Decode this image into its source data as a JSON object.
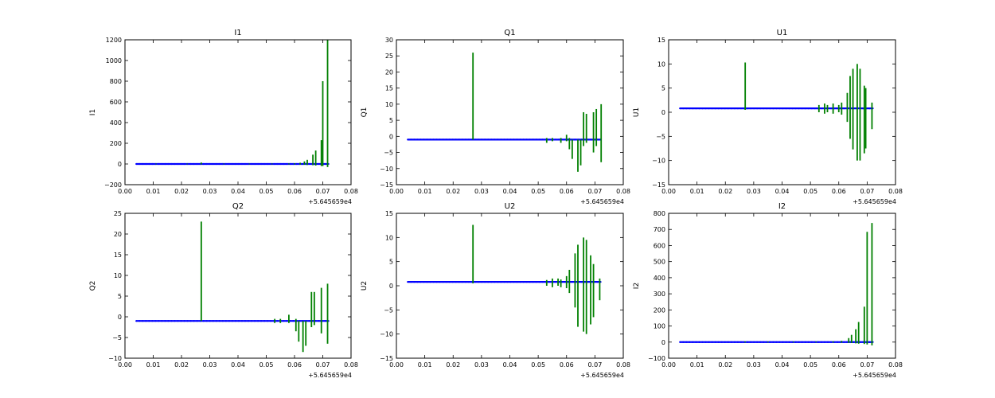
{
  "chart_data": [
    {
      "type": "line",
      "title": "I1",
      "xlabel": "",
      "ylabel": "I1",
      "x_offset_label": "+5.645659e4",
      "xlim": [
        0.0,
        0.08
      ],
      "ylim": [
        -200,
        1200
      ],
      "xticks": [
        "0.00",
        "0.01",
        "0.02",
        "0.03",
        "0.04",
        "0.05",
        "0.06",
        "0.07",
        "0.08"
      ],
      "yticks": [
        "−200",
        "0",
        "200",
        "400",
        "600",
        "800",
        "1000",
        "1200"
      ],
      "baseline": 0,
      "x_start": 0.004,
      "x_end": 0.072,
      "spikes": [
        {
          "x": 0.011,
          "min": -3,
          "max": 3
        },
        {
          "x": 0.022,
          "min": -3,
          "max": 3
        },
        {
          "x": 0.027,
          "min": -4,
          "max": 14
        },
        {
          "x": 0.035,
          "min": -3,
          "max": 3
        },
        {
          "x": 0.044,
          "min": -3,
          "max": 3
        },
        {
          "x": 0.052,
          "min": -3,
          "max": 4
        },
        {
          "x": 0.058,
          "min": -4,
          "max": 5
        },
        {
          "x": 0.06,
          "min": -4,
          "max": 7
        },
        {
          "x": 0.062,
          "min": -6,
          "max": 12
        },
        {
          "x": 0.0635,
          "min": -8,
          "max": 25
        },
        {
          "x": 0.0645,
          "min": -10,
          "max": 40
        },
        {
          "x": 0.0665,
          "min": -12,
          "max": 90
        },
        {
          "x": 0.0675,
          "min": -15,
          "max": 130
        },
        {
          "x": 0.0695,
          "min": -20,
          "max": 230
        },
        {
          "x": 0.07,
          "min": -20,
          "max": 800
        },
        {
          "x": 0.0717,
          "min": -30,
          "max": 1200
        }
      ],
      "colors": {
        "spike": "#008000",
        "baseline": "#0000ff"
      }
    },
    {
      "type": "line",
      "title": "Q1",
      "xlabel": "",
      "ylabel": "Q1",
      "x_offset_label": "+5.645659e4",
      "xlim": [
        0.0,
        0.08
      ],
      "ylim": [
        -15,
        30
      ],
      "xticks": [
        "0.00",
        "0.01",
        "0.02",
        "0.03",
        "0.04",
        "0.05",
        "0.06",
        "0.07",
        "0.08"
      ],
      "yticks": [
        "−15",
        "−10",
        "−5",
        "0",
        "5",
        "10",
        "15",
        "20",
        "25",
        "30"
      ],
      "baseline": -1,
      "x_start": 0.004,
      "x_end": 0.072,
      "spikes": [
        {
          "x": 0.027,
          "min": -1,
          "max": 26
        },
        {
          "x": 0.053,
          "min": -2,
          "max": -0.5
        },
        {
          "x": 0.055,
          "min": -1.5,
          "max": -0.5
        },
        {
          "x": 0.058,
          "min": -2,
          "max": -0.5
        },
        {
          "x": 0.06,
          "min": -1.5,
          "max": 0.5
        },
        {
          "x": 0.061,
          "min": -4,
          "max": -0.5
        },
        {
          "x": 0.062,
          "min": -7,
          "max": -1
        },
        {
          "x": 0.064,
          "min": -11,
          "max": -1
        },
        {
          "x": 0.065,
          "min": -9,
          "max": -1
        },
        {
          "x": 0.066,
          "min": -3,
          "max": 7.5
        },
        {
          "x": 0.067,
          "min": -2,
          "max": 7
        },
        {
          "x": 0.0695,
          "min": -5,
          "max": 7.5
        },
        {
          "x": 0.0705,
          "min": -3,
          "max": 8.5
        },
        {
          "x": 0.0722,
          "min": -8,
          "max": 10
        }
      ],
      "colors": {
        "spike": "#008000",
        "baseline": "#0000ff"
      }
    },
    {
      "type": "line",
      "title": "U1",
      "xlabel": "",
      "ylabel": "U1",
      "x_offset_label": "+5.645659e4",
      "xlim": [
        0.0,
        0.08
      ],
      "ylim": [
        -15,
        15
      ],
      "xticks": [
        "0.00",
        "0.01",
        "0.02",
        "0.03",
        "0.04",
        "0.05",
        "0.06",
        "0.07",
        "0.08"
      ],
      "yticks": [
        "−15",
        "−10",
        "−5",
        "0",
        "5",
        "10",
        "15"
      ],
      "baseline": 0.8,
      "x_start": 0.004,
      "x_end": 0.072,
      "spikes": [
        {
          "x": 0.027,
          "min": 0.5,
          "max": 10.3
        },
        {
          "x": 0.053,
          "min": 0,
          "max": 1.5
        },
        {
          "x": 0.055,
          "min": -0.3,
          "max": 1.8
        },
        {
          "x": 0.056,
          "min": 0,
          "max": 1.5
        },
        {
          "x": 0.058,
          "min": -0.3,
          "max": 1.8
        },
        {
          "x": 0.06,
          "min": 0,
          "max": 1.5
        },
        {
          "x": 0.061,
          "min": -0.5,
          "max": 2
        },
        {
          "x": 0.063,
          "min": -2,
          "max": 4
        },
        {
          "x": 0.064,
          "min": -5.5,
          "max": 7.5
        },
        {
          "x": 0.065,
          "min": -7.7,
          "max": 9
        },
        {
          "x": 0.0665,
          "min": -10,
          "max": 10
        },
        {
          "x": 0.0675,
          "min": -10,
          "max": 9
        },
        {
          "x": 0.069,
          "min": -8.5,
          "max": 5.5
        },
        {
          "x": 0.0695,
          "min": -7.5,
          "max": 5
        },
        {
          "x": 0.0717,
          "min": -3.5,
          "max": 2
        }
      ],
      "colors": {
        "spike": "#008000",
        "baseline": "#0000ff"
      }
    },
    {
      "type": "line",
      "title": "Q2",
      "xlabel": "",
      "ylabel": "Q2",
      "x_offset_label": "+5.645659e4",
      "xlim": [
        0.0,
        0.08
      ],
      "ylim": [
        -10,
        25
      ],
      "xticks": [
        "0.00",
        "0.01",
        "0.02",
        "0.03",
        "0.04",
        "0.05",
        "0.06",
        "0.07",
        "0.08"
      ],
      "yticks": [
        "−10",
        "−5",
        "0",
        "5",
        "10",
        "15",
        "20",
        "25"
      ],
      "baseline": -1,
      "x_start": 0.004,
      "x_end": 0.072,
      "spikes": [
        {
          "x": 0.027,
          "min": -1,
          "max": 23
        },
        {
          "x": 0.053,
          "min": -1.5,
          "max": -0.5
        },
        {
          "x": 0.055,
          "min": -1.5,
          "max": -0.5
        },
        {
          "x": 0.058,
          "min": -1.5,
          "max": 0.5
        },
        {
          "x": 0.0605,
          "min": -3.5,
          "max": -0.5
        },
        {
          "x": 0.0615,
          "min": -6,
          "max": -1
        },
        {
          "x": 0.063,
          "min": -8.5,
          "max": -1
        },
        {
          "x": 0.064,
          "min": -7,
          "max": -1
        },
        {
          "x": 0.066,
          "min": -2.5,
          "max": 6
        },
        {
          "x": 0.067,
          "min": -2,
          "max": 6
        },
        {
          "x": 0.0695,
          "min": -4,
          "max": 7
        },
        {
          "x": 0.0717,
          "min": -6.5,
          "max": 8
        }
      ],
      "colors": {
        "spike": "#008000",
        "baseline": "#0000ff"
      }
    },
    {
      "type": "line",
      "title": "U2",
      "xlabel": "",
      "ylabel": "U2",
      "x_offset_label": "+5.645659e4",
      "xlim": [
        0.0,
        0.08
      ],
      "ylim": [
        -15,
        15
      ],
      "xticks": [
        "0.00",
        "0.01",
        "0.02",
        "0.03",
        "0.04",
        "0.05",
        "0.06",
        "0.07",
        "0.08"
      ],
      "yticks": [
        "−15",
        "−10",
        "−5",
        "0",
        "5",
        "10",
        "15"
      ],
      "baseline": 0.8,
      "x_start": 0.004,
      "x_end": 0.072,
      "spikes": [
        {
          "x": 0.027,
          "min": 0.5,
          "max": 12.6
        },
        {
          "x": 0.053,
          "min": 0,
          "max": 1.2
        },
        {
          "x": 0.055,
          "min": -0.3,
          "max": 1.5
        },
        {
          "x": 0.057,
          "min": 0,
          "max": 1.5
        },
        {
          "x": 0.058,
          "min": -0.3,
          "max": 1.3
        },
        {
          "x": 0.06,
          "min": -0.5,
          "max": 2
        },
        {
          "x": 0.061,
          "min": -1.5,
          "max": 3.3
        },
        {
          "x": 0.063,
          "min": -4.5,
          "max": 6.7
        },
        {
          "x": 0.064,
          "min": -8.5,
          "max": 8.5
        },
        {
          "x": 0.066,
          "min": -9.5,
          "max": 10
        },
        {
          "x": 0.067,
          "min": -10,
          "max": 9.5
        },
        {
          "x": 0.0685,
          "min": -8,
          "max": 6.3
        },
        {
          "x": 0.0695,
          "min": -6.5,
          "max": 4.5
        },
        {
          "x": 0.0717,
          "min": -3,
          "max": 1.5
        }
      ],
      "colors": {
        "spike": "#008000",
        "baseline": "#0000ff"
      }
    },
    {
      "type": "line",
      "title": "I2",
      "xlabel": "",
      "ylabel": "I2",
      "x_offset_label": "+5.645659e4",
      "xlim": [
        0.0,
        0.08
      ],
      "ylim": [
        -100,
        800
      ],
      "xticks": [
        "0.00",
        "0.01",
        "0.02",
        "0.03",
        "0.04",
        "0.05",
        "0.06",
        "0.07",
        "0.08"
      ],
      "yticks": [
        "−100",
        "0",
        "100",
        "200",
        "300",
        "400",
        "500",
        "600",
        "700",
        "800"
      ],
      "baseline": 0,
      "x_start": 0.004,
      "x_end": 0.072,
      "spikes": [
        {
          "x": 0.027,
          "min": -2,
          "max": 4
        },
        {
          "x": 0.035,
          "min": -2,
          "max": 3
        },
        {
          "x": 0.044,
          "min": -2,
          "max": 3
        },
        {
          "x": 0.052,
          "min": -2,
          "max": 3
        },
        {
          "x": 0.058,
          "min": -3,
          "max": 5
        },
        {
          "x": 0.061,
          "min": -4,
          "max": 8
        },
        {
          "x": 0.0635,
          "min": -5,
          "max": 25
        },
        {
          "x": 0.0645,
          "min": -6,
          "max": 45
        },
        {
          "x": 0.066,
          "min": -8,
          "max": 80
        },
        {
          "x": 0.067,
          "min": -10,
          "max": 125
        },
        {
          "x": 0.069,
          "min": -12,
          "max": 220
        },
        {
          "x": 0.07,
          "min": -15,
          "max": 685
        },
        {
          "x": 0.0717,
          "min": -20,
          "max": 740
        }
      ],
      "colors": {
        "spike": "#008000",
        "baseline": "#0000ff"
      }
    }
  ]
}
